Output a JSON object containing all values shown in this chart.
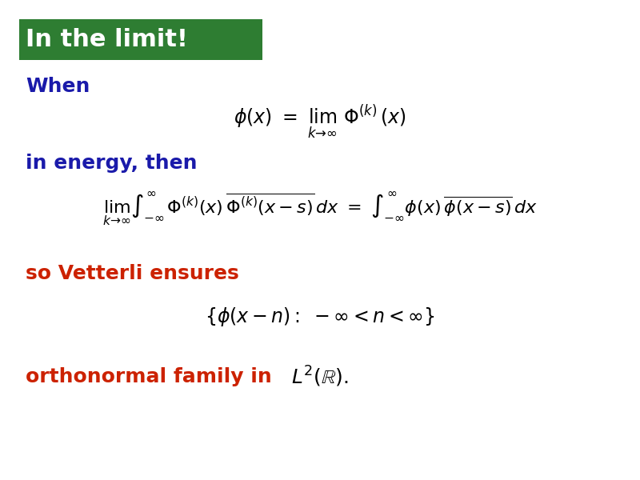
{
  "bg_color": "#ffffff",
  "title_text": "In the limit!",
  "title_bg_color": "#2e7d32",
  "title_text_color": "#ffffff",
  "title_fontsize": 22,
  "title_font": "DejaVu Sans",
  "label_when": "When",
  "label_energy": "in energy, then",
  "label_vetterli": "so Vetterli ensures",
  "label_ortho_prefix": "orthonormal family in ",
  "label_color_blue": "#1a1aaa",
  "label_color_red": "#cc2200",
  "label_fontsize": 18,
  "eq1": "\\phi(x) \\ = \\ \\lim_{k \\to \\infty} \\ \\Phi^{(k)}(x)",
  "eq2": "\\lim_{k \\to \\infty} \\int_{-\\infty}^{\\infty} \\Phi^{(k)}(x)\\, \\overline{\\Phi^{(k)}(x-s)}\\, dx \\ = \\ \\int_{-\\infty}^{\\infty} \\phi(x)\\, \\overline{\\phi(x-s)}\\, dx",
  "eq3": "\\left\\{ \\phi(x-n) :\\; -\\infty < n < \\infty \\right\\}",
  "eq4": "L^2(\\mathbb{R}).",
  "eq_color": "#000000",
  "eq_fontsize": 16
}
